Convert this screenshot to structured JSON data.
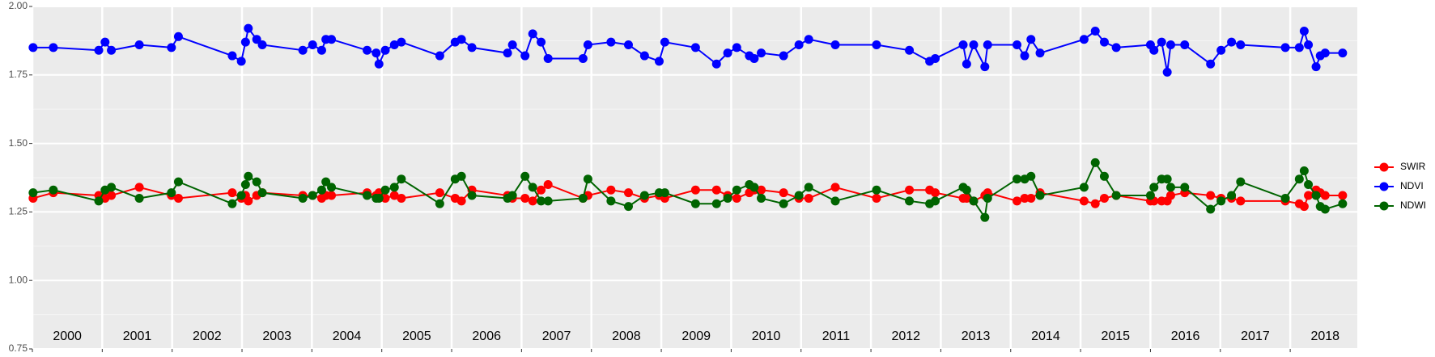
{
  "chart_data": {
    "type": "line",
    "x": [
      2000.01,
      2000.3,
      2000.95,
      2001.04,
      2001.13,
      2001.53,
      2001.99,
      2002.09,
      2002.86,
      2002.99,
      2003.05,
      2003.09,
      2003.21,
      2003.29,
      2003.87,
      2004.01,
      2004.14,
      2004.2,
      2004.28,
      2004.79,
      2004.92,
      2004.96,
      2005.05,
      2005.18,
      2005.28,
      2005.83,
      2006.05,
      2006.14,
      2006.29,
      2006.8,
      2006.87,
      2007.05,
      2007.16,
      2007.28,
      2007.38,
      2007.88,
      2007.95,
      2008.28,
      2008.53,
      2008.76,
      2008.97,
      2009.05,
      2009.49,
      2009.79,
      2009.95,
      2010.08,
      2010.26,
      2010.33,
      2010.43,
      2010.75,
      2010.97,
      2011.11,
      2011.49,
      2012.08,
      2012.55,
      2012.84,
      2012.92,
      2013.32,
      2013.37,
      2013.47,
      2013.63,
      2013.67,
      2014.09,
      2014.2,
      2014.29,
      2014.42,
      2015.05,
      2015.21,
      2015.34,
      2015.51,
      2016.0,
      2016.05,
      2016.16,
      2016.24,
      2016.29,
      2016.49,
      2016.86,
      2017.01,
      2017.16,
      2017.29,
      2017.93,
      2018.13,
      2018.2,
      2018.26,
      2018.37,
      2018.43,
      2018.5,
      2018.75
    ],
    "series": [
      {
        "name": "SWIR",
        "color": "#ff0000",
        "values": [
          1.3,
          1.32,
          1.31,
          1.3,
          1.31,
          1.34,
          1.31,
          1.3,
          1.32,
          1.3,
          1.31,
          1.29,
          1.31,
          1.32,
          1.31,
          1.31,
          1.3,
          1.31,
          1.31,
          1.32,
          1.31,
          1.32,
          1.3,
          1.31,
          1.3,
          1.32,
          1.3,
          1.29,
          1.33,
          1.31,
          1.3,
          1.3,
          1.29,
          1.33,
          1.35,
          1.3,
          1.31,
          1.33,
          1.32,
          1.3,
          1.31,
          1.3,
          1.33,
          1.33,
          1.31,
          1.3,
          1.32,
          1.33,
          1.33,
          1.32,
          1.3,
          1.3,
          1.34,
          1.3,
          1.33,
          1.33,
          1.32,
          1.3,
          1.3,
          1.29,
          1.31,
          1.32,
          1.29,
          1.3,
          1.3,
          1.32,
          1.29,
          1.28,
          1.3,
          1.31,
          1.29,
          1.29,
          1.29,
          1.29,
          1.31,
          1.32,
          1.31,
          1.3,
          1.3,
          1.29,
          1.29,
          1.28,
          1.27,
          1.31,
          1.33,
          1.32,
          1.31,
          1.31
        ]
      },
      {
        "name": "NDVI",
        "color": "#0000ff",
        "values": [
          1.85,
          1.85,
          1.84,
          1.87,
          1.84,
          1.86,
          1.85,
          1.89,
          1.82,
          1.8,
          1.87,
          1.92,
          1.88,
          1.86,
          1.84,
          1.86,
          1.84,
          1.88,
          1.88,
          1.84,
          1.83,
          1.79,
          1.84,
          1.86,
          1.87,
          1.82,
          1.87,
          1.88,
          1.85,
          1.83,
          1.86,
          1.82,
          1.9,
          1.87,
          1.81,
          1.81,
          1.86,
          1.87,
          1.86,
          1.82,
          1.8,
          1.87,
          1.85,
          1.79,
          1.83,
          1.85,
          1.82,
          1.81,
          1.83,
          1.82,
          1.86,
          1.88,
          1.86,
          1.86,
          1.84,
          1.8,
          1.81,
          1.86,
          1.79,
          1.86,
          1.78,
          1.86,
          1.86,
          1.82,
          1.88,
          1.83,
          1.88,
          1.91,
          1.87,
          1.85,
          1.86,
          1.84,
          1.87,
          1.76,
          1.86,
          1.86,
          1.79,
          1.84,
          1.87,
          1.86,
          1.85,
          1.85,
          1.91,
          1.86,
          1.78,
          1.82,
          1.83,
          1.83
        ]
      },
      {
        "name": "NDWI",
        "color": "#006400",
        "values": [
          1.32,
          1.33,
          1.29,
          1.33,
          1.34,
          1.3,
          1.32,
          1.36,
          1.28,
          1.31,
          1.35,
          1.38,
          1.36,
          1.32,
          1.3,
          1.31,
          1.33,
          1.36,
          1.34,
          1.31,
          1.3,
          1.3,
          1.33,
          1.34,
          1.37,
          1.28,
          1.37,
          1.38,
          1.31,
          1.3,
          1.31,
          1.38,
          1.34,
          1.29,
          1.29,
          1.3,
          1.37,
          1.29,
          1.27,
          1.31,
          1.32,
          1.32,
          1.28,
          1.28,
          1.3,
          1.33,
          1.35,
          1.34,
          1.3,
          1.28,
          1.31,
          1.34,
          1.29,
          1.33,
          1.29,
          1.28,
          1.29,
          1.34,
          1.33,
          1.29,
          1.23,
          1.3,
          1.37,
          1.37,
          1.38,
          1.31,
          1.34,
          1.43,
          1.38,
          1.31,
          1.31,
          1.34,
          1.37,
          1.37,
          1.34,
          1.34,
          1.26,
          1.29,
          1.31,
          1.36,
          1.3,
          1.37,
          1.4,
          1.35,
          1.31,
          1.27,
          1.26,
          1.28
        ]
      }
    ],
    "xlim": [
      2000,
      2018.96
    ],
    "xticks": [
      {
        "value": 2000.5,
        "label": "2000"
      },
      {
        "value": 2001.5,
        "label": "2001"
      },
      {
        "value": 2002.5,
        "label": "2002"
      },
      {
        "value": 2003.5,
        "label": "2003"
      },
      {
        "value": 2004.5,
        "label": "2004"
      },
      {
        "value": 2005.5,
        "label": "2005"
      },
      {
        "value": 2006.5,
        "label": "2006"
      },
      {
        "value": 2007.5,
        "label": "2007"
      },
      {
        "value": 2008.5,
        "label": "2008"
      },
      {
        "value": 2009.5,
        "label": "2009"
      },
      {
        "value": 2010.5,
        "label": "2010"
      },
      {
        "value": 2011.5,
        "label": "2011"
      },
      {
        "value": 2012.5,
        "label": "2012"
      },
      {
        "value": 2013.5,
        "label": "2013"
      },
      {
        "value": 2014.5,
        "label": "2014"
      },
      {
        "value": 2015.5,
        "label": "2015"
      },
      {
        "value": 2016.5,
        "label": "2016"
      },
      {
        "value": 2017.5,
        "label": "2017"
      },
      {
        "value": 2018.5,
        "label": "2018"
      }
    ],
    "xgrid": [
      2000,
      2001,
      2002,
      2003,
      2004,
      2005,
      2006,
      2007,
      2008,
      2009,
      2010,
      2011,
      2012,
      2013,
      2014,
      2015,
      2016,
      2017,
      2018
    ],
    "ylim": [
      0.75,
      2.0
    ],
    "yticks": [
      {
        "value": 0.75,
        "label": "0.75"
      },
      {
        "value": 1.0,
        "label": "1.00"
      },
      {
        "value": 1.25,
        "label": "1.25"
      },
      {
        "value": 1.5,
        "label": "1.50"
      },
      {
        "value": 1.75,
        "label": "1.75"
      },
      {
        "value": 2.0,
        "label": "2.00"
      }
    ],
    "yminor": [
      0.875,
      1.125,
      1.375,
      1.625,
      1.875
    ],
    "grid": true,
    "legend": "right"
  }
}
